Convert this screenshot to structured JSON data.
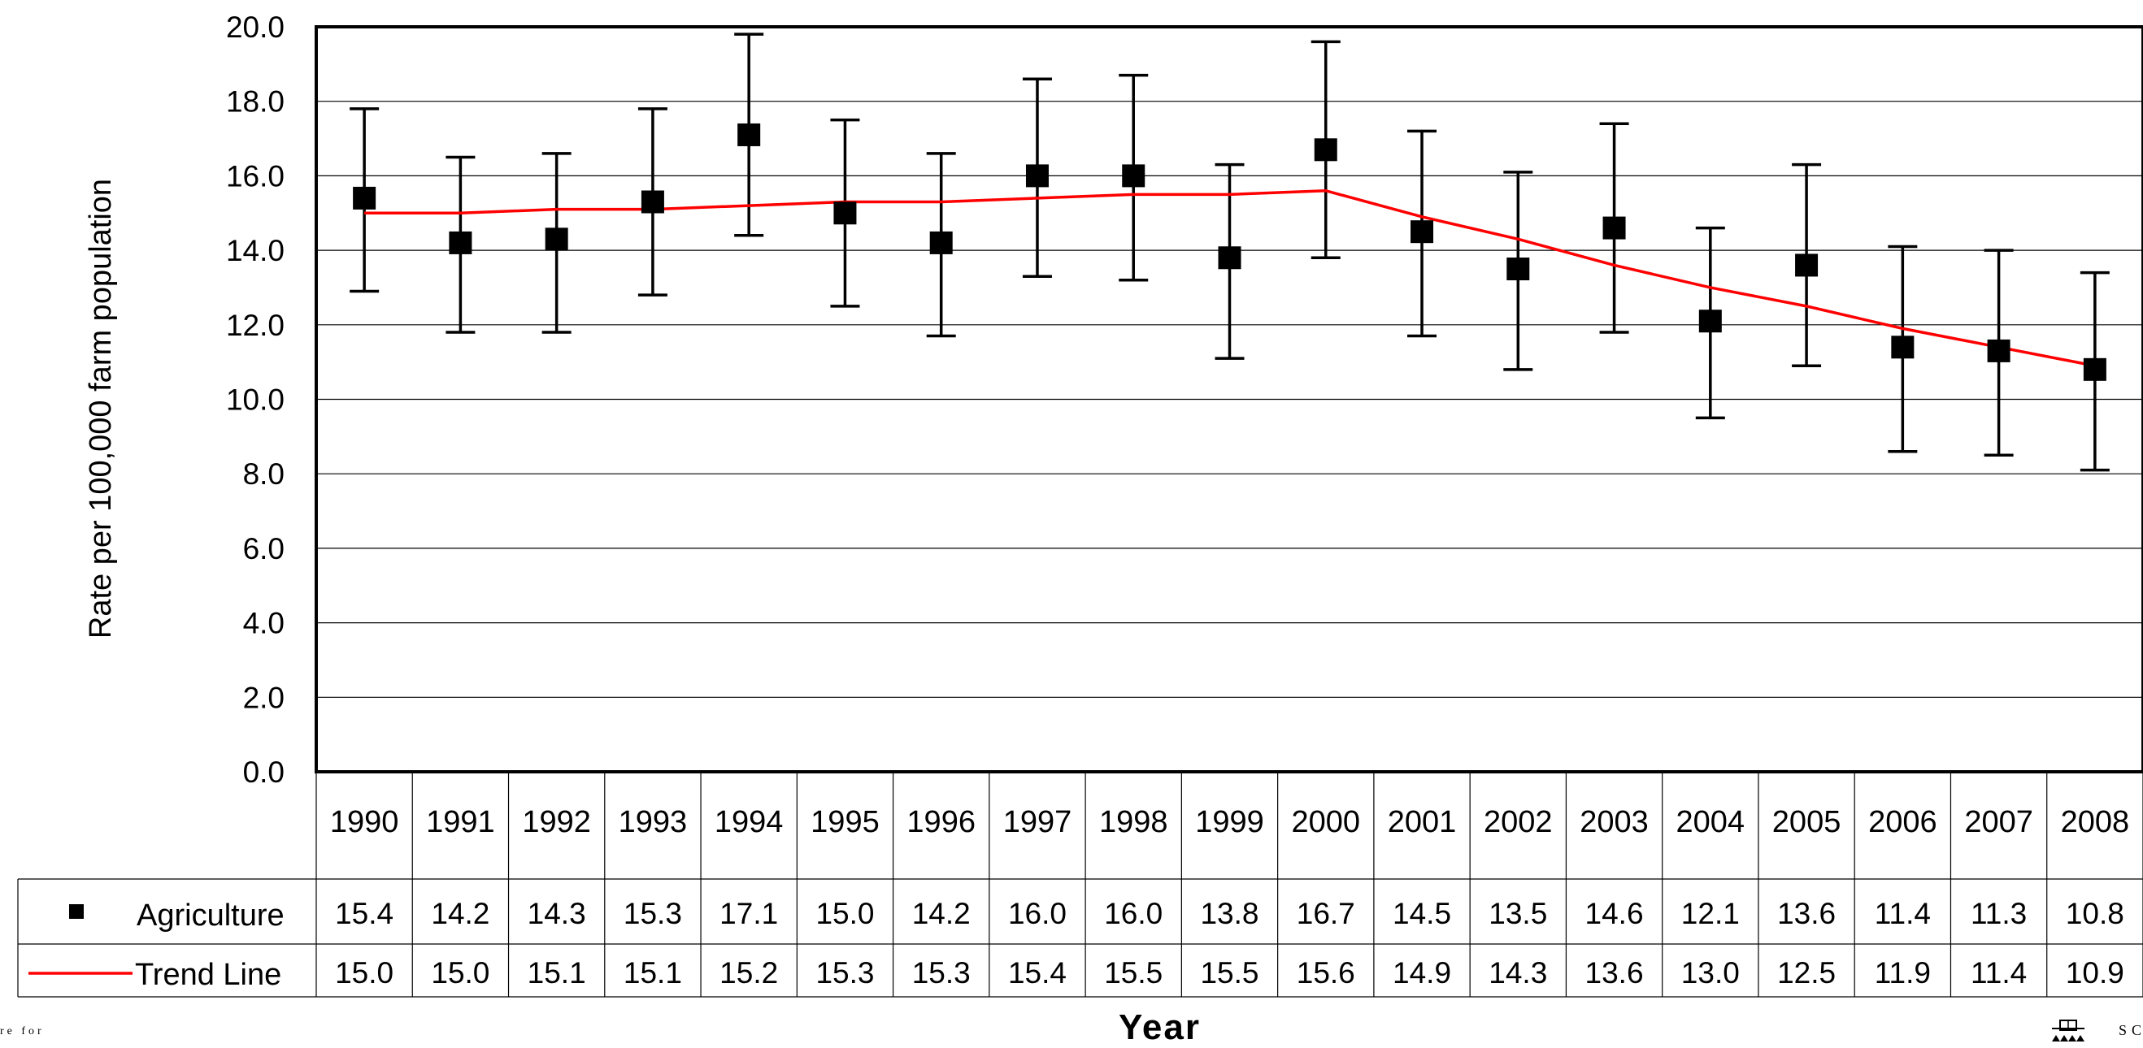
{
  "chart_data": {
    "type": "line",
    "ylabel": "Rate per 100,000 farm population",
    "xlabel": "Year",
    "ylim": [
      0,
      20
    ],
    "yticks": [
      "0.0",
      "2.0",
      "4.0",
      "6.0",
      "8.0",
      "10.0",
      "12.0",
      "14.0",
      "16.0",
      "18.0",
      "20.0"
    ],
    "grid": true,
    "categories": [
      "1990",
      "1991",
      "1992",
      "1993",
      "1994",
      "1995",
      "1996",
      "1997",
      "1998",
      "1999",
      "2000",
      "2001",
      "2002",
      "2003",
      "2004",
      "2005",
      "2006",
      "2007",
      "2008"
    ],
    "series": [
      {
        "name": "Agriculture",
        "marker": "square",
        "color": "#000000",
        "values": [
          15.4,
          14.2,
          14.3,
          15.3,
          17.1,
          15.0,
          14.2,
          16.0,
          16.0,
          13.8,
          16.7,
          14.5,
          13.5,
          14.6,
          12.1,
          13.6,
          11.4,
          11.3,
          10.8
        ],
        "error_low": [
          12.9,
          11.8,
          11.8,
          12.8,
          14.4,
          12.5,
          11.7,
          13.3,
          13.2,
          11.1,
          13.8,
          11.7,
          10.8,
          11.8,
          9.5,
          10.9,
          8.6,
          8.5,
          8.1
        ],
        "error_high": [
          17.8,
          16.5,
          16.6,
          17.8,
          19.8,
          17.5,
          16.6,
          18.6,
          18.7,
          16.3,
          19.6,
          17.2,
          16.1,
          17.4,
          14.6,
          16.3,
          14.1,
          14.0,
          13.4
        ]
      },
      {
        "name": "Trend Line",
        "color": "#ff0000",
        "values": [
          15.0,
          15.0,
          15.1,
          15.1,
          15.2,
          15.3,
          15.3,
          15.4,
          15.5,
          15.5,
          15.6,
          14.9,
          14.3,
          13.6,
          13.0,
          12.5,
          11.9,
          11.4,
          10.9
        ]
      }
    ],
    "table_rows": [
      {
        "label": "Agriculture",
        "cells": [
          "15.4",
          "14.2",
          "14.3",
          "15.3",
          "17.1",
          "15.0",
          "14.2",
          "16.0",
          "16.0",
          "13.8",
          "16.7",
          "14.5",
          "13.5",
          "14.6",
          "12.1",
          "13.6",
          "11.4",
          "11.3",
          "10.8"
        ]
      },
      {
        "label": "Trend Line",
        "cells": [
          "15.0",
          "15.0",
          "15.1",
          "15.1",
          "15.2",
          "15.3",
          "15.3",
          "15.4",
          "15.5",
          "15.5",
          "15.6",
          "14.9",
          "14.3",
          "13.6",
          "13.0",
          "12.5",
          "11.9",
          "11.4",
          "10.9"
        ]
      }
    ]
  },
  "footer": {
    "left_fragment": "re for",
    "right_fragment": "SC"
  }
}
